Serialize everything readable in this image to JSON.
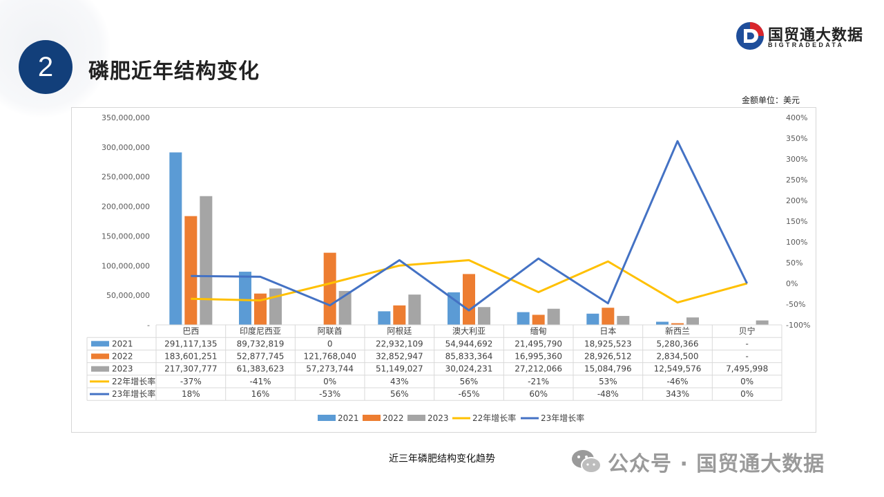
{
  "section": {
    "number": "2",
    "title": "磷肥近年结构变化"
  },
  "logo": {
    "name": "国贸通大数据",
    "sub": "BIGTRADEDATA"
  },
  "unit_note": "金额单位：美元",
  "caption": "近三年磷肥结构变化趋势",
  "watermark": "公众号 · 国贸通大数据",
  "colors": {
    "s2021": "#5b9bd5",
    "s2022": "#ed7d31",
    "s2023": "#a5a5a5",
    "g22": "#ffc000",
    "g23": "#4472c4",
    "badge": "#123f7a"
  },
  "chart_data": {
    "type": "bar",
    "categories": [
      "巴西",
      "印度尼西亚",
      "阿联酋",
      "阿根廷",
      "澳大利亚",
      "缅甸",
      "日本",
      "新西兰",
      "贝宁"
    ],
    "series": [
      {
        "name": "2021",
        "kind": "bar",
        "values": [
          291117135,
          89732819,
          0,
          22932109,
          54944692,
          21495790,
          18925523,
          5280366,
          null
        ],
        "labels": [
          "291,117,135",
          "89,732,819",
          "0",
          "22,932,109",
          "54,944,692",
          "21,495,790",
          "18,925,523",
          "5,280,366",
          "-"
        ]
      },
      {
        "name": "2022",
        "kind": "bar",
        "values": [
          183601251,
          52877745,
          121768040,
          32852947,
          85833364,
          16995360,
          28926512,
          2834500,
          null
        ],
        "labels": [
          "183,601,251",
          "52,877,745",
          "121,768,040",
          "32,852,947",
          "85,833,364",
          "16,995,360",
          "28,926,512",
          "2,834,500",
          "-"
        ]
      },
      {
        "name": "2023",
        "kind": "bar",
        "values": [
          217307777,
          61383623,
          57273744,
          51149027,
          30024231,
          27212066,
          15084796,
          12549576,
          7495998
        ],
        "labels": [
          "217,307,777",
          "61,383,623",
          "57,273,744",
          "51,149,027",
          "30,024,231",
          "27,212,066",
          "15,084,796",
          "12,549,576",
          "7,495,998"
        ]
      },
      {
        "name": "22年增长率",
        "kind": "line",
        "axis": "right",
        "values": [
          -37,
          -41,
          0,
          43,
          56,
          -21,
          53,
          -46,
          0
        ],
        "labels": [
          "-37%",
          "-41%",
          "0%",
          "43%",
          "56%",
          "-21%",
          "53%",
          "-46%",
          "0%"
        ]
      },
      {
        "name": "23年增长率",
        "kind": "line",
        "axis": "right",
        "values": [
          18,
          16,
          -53,
          56,
          -65,
          60,
          -48,
          343,
          0
        ],
        "labels": [
          "18%",
          "16%",
          "-53%",
          "56%",
          "-65%",
          "60%",
          "-48%",
          "343%",
          "0%"
        ]
      }
    ],
    "y_left": {
      "min": 0,
      "max": 350000000,
      "step": 50000000,
      "ticks": [
        "-",
        "50,000,000",
        "100,000,000",
        "150,000,000",
        "200,000,000",
        "250,000,000",
        "300,000,000",
        "350,000,000"
      ]
    },
    "y_right": {
      "min": -100,
      "max": 400,
      "step": 50,
      "ticks": [
        "-100%",
        "-50%",
        "0%",
        "50%",
        "100%",
        "150%",
        "200%",
        "250%",
        "300%",
        "350%",
        "400%"
      ]
    },
    "grid": false,
    "legend_position": "bottom",
    "data_table": true
  }
}
